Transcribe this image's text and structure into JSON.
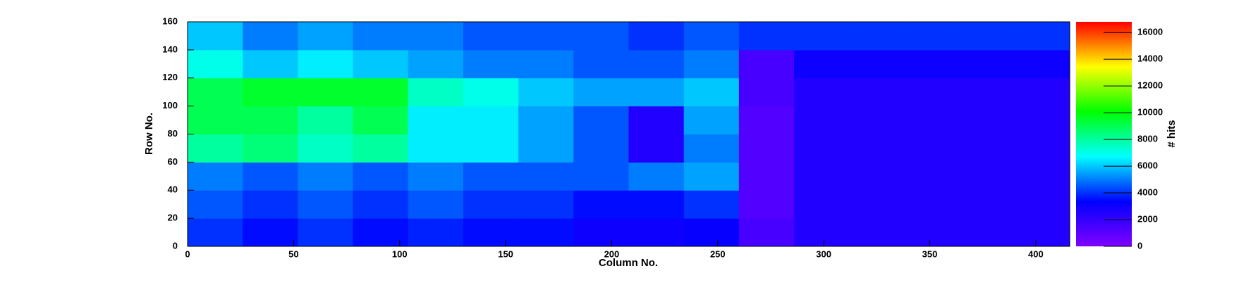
{
  "chart_data": {
    "type": "heatmap",
    "xlabel": "Column No.",
    "ylabel": "Row No.",
    "zlabel": "# hits",
    "xbins": [
      0,
      26,
      52,
      78,
      104,
      130,
      156,
      182,
      208,
      234,
      260,
      286,
      312,
      338,
      364,
      390,
      416
    ],
    "ybins": [
      0,
      20,
      40,
      60,
      80,
      100,
      120,
      140,
      160
    ],
    "z": [
      [
        4000,
        3500,
        4000,
        3500,
        3800,
        3500,
        3500,
        3000,
        3000,
        3200,
        1500,
        2500,
        2500,
        2500,
        2500,
        2500
      ],
      [
        4500,
        4000,
        4500,
        4000,
        4500,
        4000,
        4000,
        3500,
        3500,
        4000,
        1200,
        2500,
        2500,
        2500,
        2500,
        2500
      ],
      [
        5000,
        4500,
        5000,
        4500,
        5000,
        4500,
        4500,
        4500,
        5000,
        5500,
        1200,
        2500,
        2500,
        2500,
        2500,
        2500
      ],
      [
        8000,
        8500,
        7500,
        8000,
        6500,
        6500,
        5500,
        4500,
        2500,
        5000,
        1200,
        2500,
        2500,
        2500,
        2500,
        2500
      ],
      [
        9000,
        9000,
        8000,
        9000,
        6500,
        6500,
        5500,
        4500,
        2500,
        5500,
        1200,
        2500,
        2500,
        2500,
        2500,
        2500
      ],
      [
        9000,
        9500,
        9500,
        9500,
        7500,
        7000,
        6000,
        5500,
        5500,
        6000,
        1500,
        2500,
        2500,
        2500,
        2500,
        2500
      ],
      [
        7000,
        6000,
        6500,
        6000,
        5500,
        5000,
        5000,
        4500,
        4500,
        5000,
        1500,
        3000,
        3000,
        3000,
        3000,
        3000
      ],
      [
        6000,
        5000,
        5500,
        5000,
        5000,
        4500,
        4500,
        4500,
        4000,
        4500,
        4000,
        4000,
        4000,
        4000,
        4000,
        4000
      ]
    ],
    "xlim": [
      0,
      416
    ],
    "ylim": [
      0,
      160
    ],
    "zlim": [
      0,
      16800
    ],
    "xticks": [
      0,
      50,
      100,
      150,
      200,
      250,
      300,
      350,
      400
    ],
    "yticks": [
      0,
      20,
      40,
      60,
      80,
      100,
      120,
      140,
      160
    ],
    "zticks": [
      0,
      2000,
      4000,
      6000,
      8000,
      10000,
      12000,
      14000,
      16000
    ],
    "colorscale": [
      "#8000ff",
      "#0000ff",
      "#00ffff",
      "#00ff00",
      "#ffff00",
      "#ff0000"
    ]
  }
}
